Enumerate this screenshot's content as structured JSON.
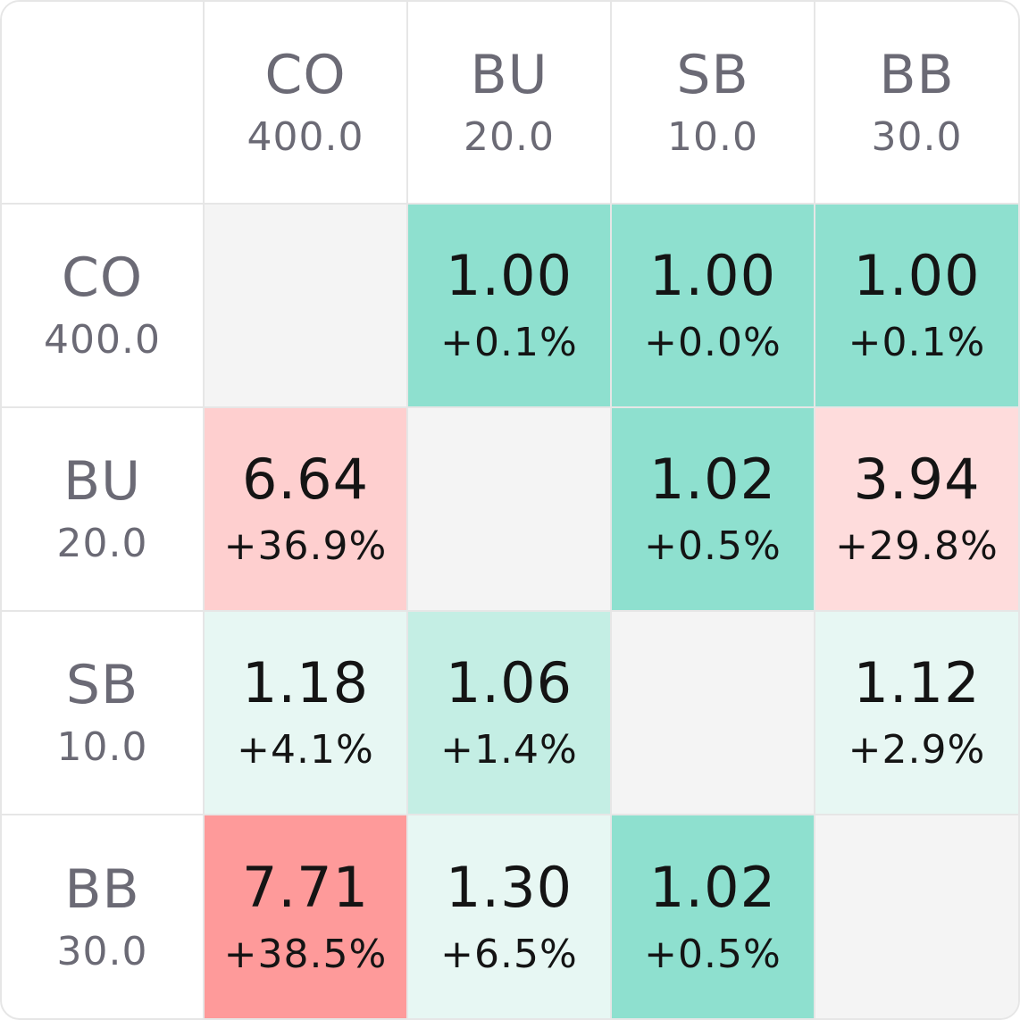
{
  "chart_data": {
    "type": "heatmap",
    "positions": [
      {
        "name": "CO",
        "stack": "400.0"
      },
      {
        "name": "BU",
        "stack": "20.0"
      },
      {
        "name": "SB",
        "stack": "10.0"
      },
      {
        "name": "BB",
        "stack": "30.0"
      }
    ],
    "cells": [
      [
        null,
        {
          "value": "1.00",
          "change": "+0.1%"
        },
        {
          "value": "1.00",
          "change": "+0.0%"
        },
        {
          "value": "1.00",
          "change": "+0.1%"
        }
      ],
      [
        {
          "value": "6.64",
          "change": "+36.9%"
        },
        null,
        {
          "value": "1.02",
          "change": "+0.5%"
        },
        {
          "value": "3.94",
          "change": "+29.8%"
        }
      ],
      [
        {
          "value": "1.18",
          "change": "+4.1%"
        },
        {
          "value": "1.06",
          "change": "+1.4%"
        },
        null,
        {
          "value": "1.12",
          "change": "+2.9%"
        }
      ],
      [
        {
          "value": "7.71",
          "change": "+38.5%"
        },
        {
          "value": "1.30",
          "change": "+6.5%"
        },
        {
          "value": "1.02",
          "change": "+0.5%"
        },
        null
      ]
    ],
    "colors": {
      "diagonal": "#f4f4f4",
      "green_strong": "#8ee0cf",
      "green_medium": "#c4eee4",
      "green_light": "#e7f7f3",
      "red_strong": "#fe9a9a",
      "red_medium": "#fecfcf",
      "red_light": "#fedcdc"
    }
  }
}
